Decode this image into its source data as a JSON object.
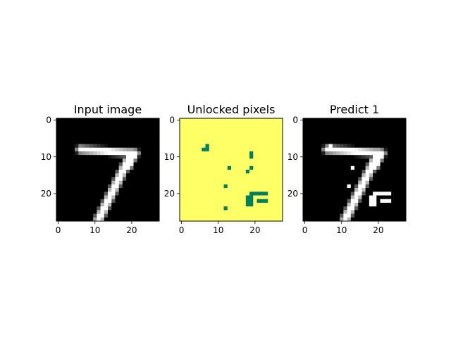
{
  "colors": {
    "background": "#ffffff",
    "grayscale_low": "#000000",
    "grayscale_high": "#ffffff",
    "unlocked": "#007f5f",
    "locked": "#ffff66"
  },
  "chart_data": [
    {
      "type": "heatmap",
      "title": "Input image",
      "colormap": "gray",
      "shape": [
        28,
        28
      ],
      "xticks": [
        0,
        10,
        20
      ],
      "yticks": [
        0,
        10,
        20
      ],
      "xlim": [
        -0.5,
        27.5
      ],
      "ylim": [
        27.5,
        -0.5
      ],
      "strokes": [
        {
          "from": [
            6,
            8
          ],
          "to": [
            21,
            9
          ],
          "width": 1.4
        },
        {
          "from": [
            20,
            9
          ],
          "to": [
            11,
            27
          ],
          "width": 1.6
        },
        {
          "from": [
            21,
            9
          ],
          "to": [
            19,
            13
          ],
          "width": 1.2
        }
      ],
      "faint": [
        [
          5,
          8,
          0.35
        ]
      ]
    },
    {
      "type": "heatmap",
      "title": "Unlocked pixels",
      "colormap": "summer",
      "shape": [
        28,
        28
      ],
      "xticks": [
        0,
        10,
        20
      ],
      "yticks": [
        0,
        10,
        20
      ],
      "xlim": [
        -0.5,
        27.5
      ],
      "ylim": [
        27.5,
        -0.5
      ],
      "background_value": 1,
      "unlocked_pixels": [
        [
          7,
          7
        ],
        [
          6,
          8
        ],
        [
          7,
          8
        ],
        [
          19,
          9
        ],
        [
          19,
          10
        ],
        [
          13,
          13
        ],
        [
          19,
          13
        ],
        [
          18,
          14
        ],
        [
          12,
          18
        ],
        [
          19,
          20
        ],
        [
          20,
          20
        ],
        [
          21,
          20
        ],
        [
          22,
          20
        ],
        [
          23,
          20
        ],
        [
          18,
          21
        ],
        [
          19,
          21
        ],
        [
          18,
          22
        ],
        [
          19,
          22
        ],
        [
          21,
          22
        ],
        [
          22,
          22
        ],
        [
          23,
          22
        ],
        [
          18,
          23
        ],
        [
          19,
          23
        ],
        [
          12,
          24
        ]
      ]
    },
    {
      "type": "heatmap",
      "title": "Predict 1",
      "colormap": "gray",
      "shape": [
        28,
        28
      ],
      "xticks": [
        0,
        10,
        20
      ],
      "yticks": [
        0,
        10,
        20
      ],
      "xlim": [
        -0.5,
        27.5
      ],
      "ylim": [
        27.5,
        -0.5
      ],
      "derived_from": "input image with unlocked pixels set to white"
    }
  ]
}
